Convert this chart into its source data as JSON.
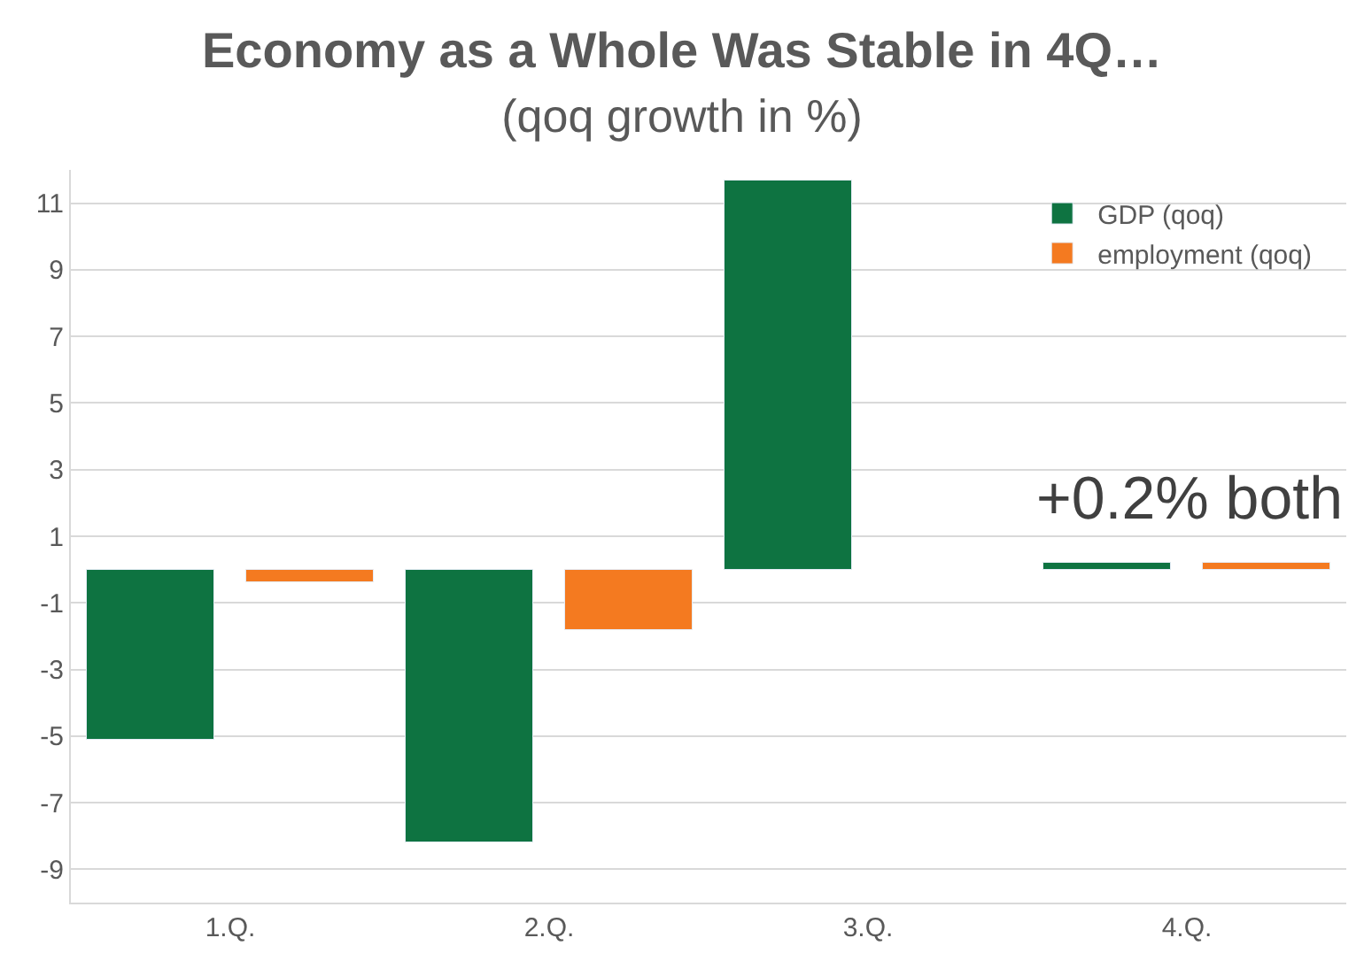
{
  "chart_data": {
    "type": "bar",
    "title": "Economy as a Whole Was Stable in 4Q…",
    "subtitle": "(qoq growth in %)",
    "categories": [
      "1.Q.",
      "2.Q.",
      "3.Q.",
      "4.Q."
    ],
    "series": [
      {
        "name": "GDP (qoq)",
        "color": "#0e7341",
        "values": [
          -5.1,
          -8.2,
          11.7,
          0.2
        ]
      },
      {
        "name": "employment (qoq)",
        "color": "#f47a20",
        "values": [
          -0.4,
          -1.8,
          null,
          0.2
        ]
      }
    ],
    "ylim": [
      -10,
      12
    ],
    "yticks": [
      -9,
      -7,
      -5,
      -3,
      -1,
      1,
      3,
      5,
      7,
      9,
      11
    ],
    "grid": "y",
    "legend": "top right",
    "annotations": [
      "+0.2% both"
    ]
  }
}
